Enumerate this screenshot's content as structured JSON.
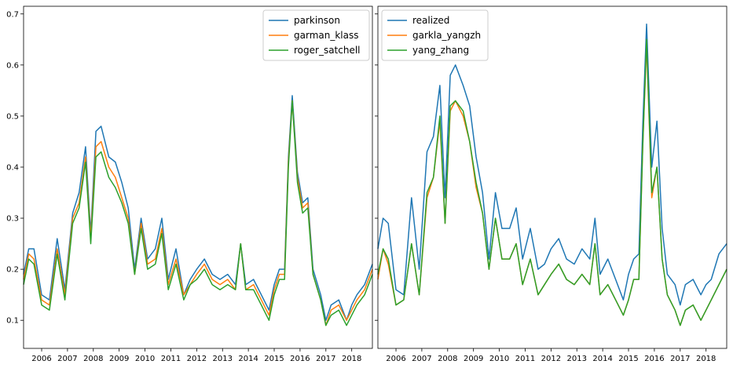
{
  "chart_data": [
    {
      "type": "line",
      "title": "",
      "xlabel": "",
      "ylabel": "",
      "xlim": [
        2005.3,
        2018.8
      ],
      "ylim": [
        0.045,
        0.715
      ],
      "x_ticks": [
        2006,
        2007,
        2008,
        2009,
        2010,
        2011,
        2012,
        2013,
        2014,
        2015,
        2016,
        2017,
        2018
      ],
      "x_tick_labels": [
        "2006",
        "2007",
        "2008",
        "2009",
        "2010",
        "2011",
        "2012",
        "2013",
        "2014",
        "2015",
        "2016",
        "2017",
        "2018"
      ],
      "y_ticks": [
        0.1,
        0.2,
        0.3,
        0.4,
        0.5,
        0.6,
        0.7
      ],
      "y_tick_labels": [
        "0.1",
        "0.2",
        "0.3",
        "0.4",
        "0.5",
        "0.6",
        "0.7"
      ],
      "show_y_tick_labels": true,
      "grid": false,
      "legend_position": "upper-right",
      "x": [
        2005.3,
        2005.5,
        2005.7,
        2006.0,
        2006.3,
        2006.6,
        2006.9,
        2007.2,
        2007.45,
        2007.7,
        2007.9,
        2008.1,
        2008.3,
        2008.6,
        2008.85,
        2009.1,
        2009.35,
        2009.6,
        2009.85,
        2010.1,
        2010.4,
        2010.65,
        2010.9,
        2011.2,
        2011.5,
        2011.75,
        2012.0,
        2012.3,
        2012.6,
        2012.9,
        2013.2,
        2013.5,
        2013.7,
        2013.9,
        2014.2,
        2014.5,
        2014.8,
        2015.0,
        2015.2,
        2015.4,
        2015.55,
        2015.7,
        2015.9,
        2016.1,
        2016.3,
        2016.5,
        2016.8,
        2017.0,
        2017.2,
        2017.5,
        2017.8,
        2018.0,
        2018.2,
        2018.5,
        2018.8
      ],
      "series": [
        {
          "name": "parkinson",
          "color": "#1f77b4",
          "values": [
            0.19,
            0.24,
            0.24,
            0.15,
            0.14,
            0.26,
            0.16,
            0.31,
            0.35,
            0.44,
            0.27,
            0.47,
            0.48,
            0.42,
            0.41,
            0.37,
            0.32,
            0.2,
            0.3,
            0.22,
            0.24,
            0.3,
            0.18,
            0.24,
            0.15,
            0.18,
            0.2,
            0.22,
            0.19,
            0.18,
            0.19,
            0.17,
            0.25,
            0.17,
            0.18,
            0.15,
            0.12,
            0.17,
            0.2,
            0.2,
            0.42,
            0.54,
            0.39,
            0.33,
            0.34,
            0.2,
            0.15,
            0.1,
            0.13,
            0.14,
            0.1,
            0.13,
            0.15,
            0.17,
            0.21
          ]
        },
        {
          "name": "garman_klass",
          "color": "#ff7f0e",
          "values": [
            0.18,
            0.23,
            0.22,
            0.14,
            0.13,
            0.24,
            0.15,
            0.3,
            0.33,
            0.42,
            0.26,
            0.44,
            0.45,
            0.4,
            0.38,
            0.34,
            0.3,
            0.19,
            0.29,
            0.21,
            0.22,
            0.28,
            0.17,
            0.22,
            0.15,
            0.17,
            0.19,
            0.21,
            0.18,
            0.17,
            0.18,
            0.16,
            0.25,
            0.16,
            0.17,
            0.14,
            0.11,
            0.16,
            0.19,
            0.19,
            0.41,
            0.53,
            0.38,
            0.32,
            0.33,
            0.19,
            0.14,
            0.09,
            0.12,
            0.13,
            0.1,
            0.12,
            0.14,
            0.16,
            0.2
          ]
        },
        {
          "name": "roger_satchell",
          "color": "#2ca02c",
          "values": [
            0.17,
            0.22,
            0.21,
            0.13,
            0.12,
            0.23,
            0.14,
            0.29,
            0.32,
            0.41,
            0.25,
            0.42,
            0.43,
            0.38,
            0.36,
            0.33,
            0.29,
            0.19,
            0.28,
            0.2,
            0.21,
            0.27,
            0.16,
            0.21,
            0.14,
            0.17,
            0.18,
            0.2,
            0.17,
            0.16,
            0.17,
            0.16,
            0.25,
            0.16,
            0.16,
            0.13,
            0.1,
            0.15,
            0.18,
            0.18,
            0.4,
            0.53,
            0.37,
            0.31,
            0.32,
            0.19,
            0.14,
            0.09,
            0.11,
            0.12,
            0.09,
            0.11,
            0.13,
            0.15,
            0.19
          ]
        }
      ]
    },
    {
      "type": "line",
      "title": "",
      "xlabel": "",
      "ylabel": "",
      "xlim": [
        2005.3,
        2018.8
      ],
      "ylim": [
        0.045,
        0.715
      ],
      "x_ticks": [
        2006,
        2007,
        2008,
        2009,
        2010,
        2011,
        2012,
        2013,
        2014,
        2015,
        2016,
        2017,
        2018
      ],
      "x_tick_labels": [
        "2006",
        "2007",
        "2008",
        "2009",
        "2010",
        "2011",
        "2012",
        "2013",
        "2014",
        "2015",
        "2016",
        "2017",
        "2018"
      ],
      "y_ticks": [
        0.1,
        0.2,
        0.3,
        0.4,
        0.5,
        0.6,
        0.7
      ],
      "y_tick_labels": [
        "",
        "",
        "",
        "",
        "",
        "",
        ""
      ],
      "show_y_tick_labels": false,
      "grid": false,
      "legend_position": "upper-left",
      "x": [
        2005.3,
        2005.5,
        2005.7,
        2006.0,
        2006.3,
        2006.6,
        2006.9,
        2007.2,
        2007.45,
        2007.7,
        2007.9,
        2008.1,
        2008.3,
        2008.6,
        2008.85,
        2009.1,
        2009.35,
        2009.6,
        2009.85,
        2010.1,
        2010.4,
        2010.65,
        2010.9,
        2011.2,
        2011.5,
        2011.75,
        2012.0,
        2012.3,
        2012.6,
        2012.9,
        2013.2,
        2013.5,
        2013.7,
        2013.9,
        2014.2,
        2014.5,
        2014.8,
        2015.0,
        2015.2,
        2015.4,
        2015.55,
        2015.7,
        2015.9,
        2016.1,
        2016.3,
        2016.5,
        2016.8,
        2017.0,
        2017.2,
        2017.5,
        2017.8,
        2018.0,
        2018.2,
        2018.5,
        2018.8
      ],
      "series": [
        {
          "name": "realized",
          "color": "#1f77b4",
          "values": [
            0.24,
            0.3,
            0.29,
            0.16,
            0.15,
            0.34,
            0.2,
            0.43,
            0.46,
            0.56,
            0.34,
            0.58,
            0.6,
            0.56,
            0.52,
            0.42,
            0.35,
            0.22,
            0.35,
            0.28,
            0.28,
            0.32,
            0.22,
            0.28,
            0.2,
            0.21,
            0.24,
            0.26,
            0.22,
            0.21,
            0.24,
            0.22,
            0.3,
            0.19,
            0.22,
            0.18,
            0.14,
            0.19,
            0.22,
            0.23,
            0.48,
            0.68,
            0.4,
            0.49,
            0.28,
            0.19,
            0.17,
            0.13,
            0.17,
            0.18,
            0.15,
            0.17,
            0.18,
            0.23,
            0.25
          ]
        },
        {
          "name": "garkla_yangzh",
          "color": "#ff7f0e",
          "values": [
            0.18,
            0.24,
            0.21,
            0.13,
            0.14,
            0.25,
            0.15,
            0.34,
            0.38,
            0.49,
            0.29,
            0.51,
            0.53,
            0.5,
            0.45,
            0.36,
            0.31,
            0.2,
            0.3,
            0.22,
            0.22,
            0.25,
            0.17,
            0.22,
            0.15,
            0.17,
            0.19,
            0.21,
            0.18,
            0.17,
            0.19,
            0.17,
            0.25,
            0.15,
            0.17,
            0.14,
            0.11,
            0.14,
            0.18,
            0.18,
            0.44,
            0.64,
            0.34,
            0.4,
            0.22,
            0.15,
            0.12,
            0.09,
            0.12,
            0.13,
            0.1,
            0.12,
            0.14,
            0.17,
            0.2
          ]
        },
        {
          "name": "yang_zhang",
          "color": "#2ca02c",
          "values": [
            0.19,
            0.24,
            0.22,
            0.13,
            0.14,
            0.25,
            0.15,
            0.35,
            0.38,
            0.5,
            0.29,
            0.52,
            0.53,
            0.51,
            0.45,
            0.37,
            0.31,
            0.2,
            0.3,
            0.22,
            0.22,
            0.25,
            0.17,
            0.22,
            0.15,
            0.17,
            0.19,
            0.21,
            0.18,
            0.17,
            0.19,
            0.17,
            0.25,
            0.15,
            0.17,
            0.14,
            0.11,
            0.14,
            0.18,
            0.18,
            0.44,
            0.65,
            0.35,
            0.4,
            0.22,
            0.15,
            0.12,
            0.09,
            0.12,
            0.13,
            0.1,
            0.12,
            0.14,
            0.17,
            0.2
          ]
        }
      ]
    }
  ]
}
